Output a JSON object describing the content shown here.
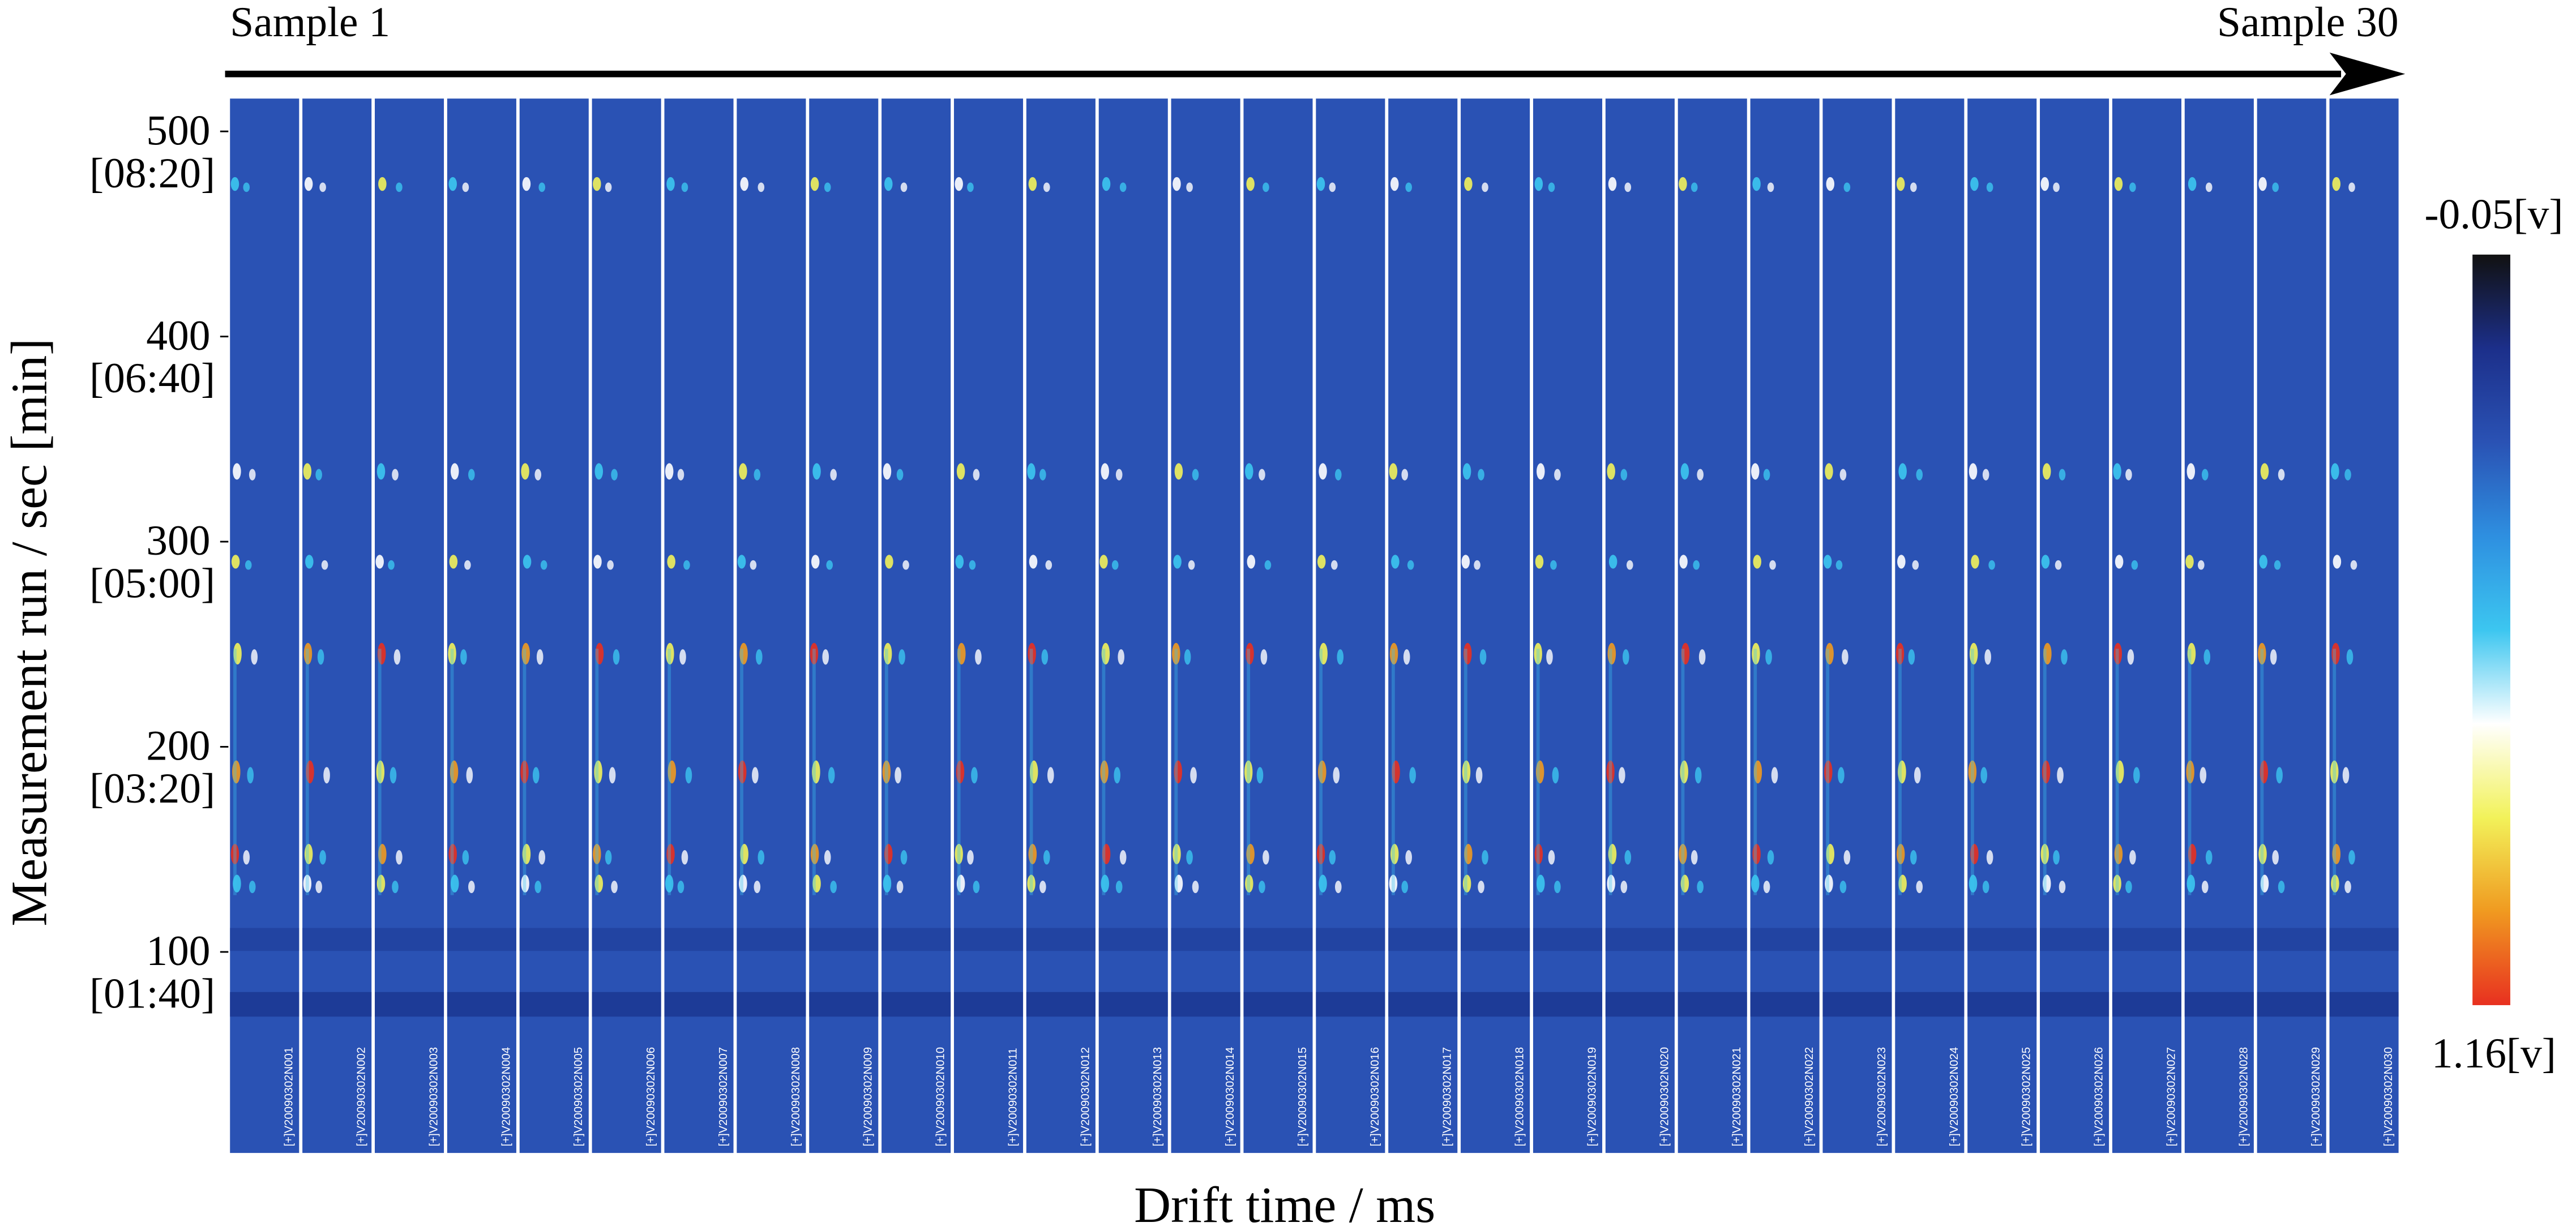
{
  "chart_data": {
    "type": "heatmap-panels",
    "panel_start_label": "Sample 1",
    "panel_end_label": "Sample 30",
    "ylabel": "Measurement run / sec [min]",
    "xlabel": "Drift time / ms",
    "ylim": [
      2,
      516
    ],
    "yticks": [
      {
        "value": 500,
        "label": "500",
        "time_label": "[08:20]"
      },
      {
        "value": 400,
        "label": "400",
        "time_label": "[06:40]"
      },
      {
        "value": 300,
        "label": "300",
        "time_label": "[05:00]"
      },
      {
        "value": 200,
        "label": "200",
        "time_label": "[03:20]"
      },
      {
        "value": 100,
        "label": "100",
        "time_label": "[01:40]"
      }
    ],
    "panels": [
      "[+]V20090302N001",
      "[+]V20090302N002",
      "[+]V20090302N003",
      "[+]V20090302N004",
      "[+]V20090302N005",
      "[+]V20090302N006",
      "[+]V20090302N007",
      "[+]V20090302N008",
      "[+]V20090302N009",
      "[+]V20090302N010",
      "[+]V20090302N011",
      "[+]V20090302N012",
      "[+]V20090302N013",
      "[+]V20090302N014",
      "[+]V20090302N015",
      "[+]V20090302N016",
      "[+]V20090302N017",
      "[+]V20090302N018",
      "[+]V20090302N019",
      "[+]V20090302N020",
      "[+]V20090302N021",
      "[+]V20090302N022",
      "[+]V20090302N023",
      "[+]V20090302N024",
      "[+]V20090302N025",
      "[+]V20090302N026",
      "[+]V20090302N027",
      "[+]V20090302N028",
      "[+]V20090302N029",
      "[+]V20090302N030"
    ],
    "background_color": "#2a52b4",
    "colorbar": {
      "lim": [
        -0.05,
        1.16
      ],
      "ticks": [
        {
          "value": -0.05,
          "label": "-0.05[v]"
        },
        {
          "value": 1.16,
          "label": "1.16[v]"
        }
      ],
      "colors": [
        "#111111",
        "#1c2f8a",
        "#2a52b4",
        "#2e8fe0",
        "#3cc6f0",
        "#ffffff",
        "#f2f25a",
        "#f09a20",
        "#e83020"
      ]
    }
  }
}
